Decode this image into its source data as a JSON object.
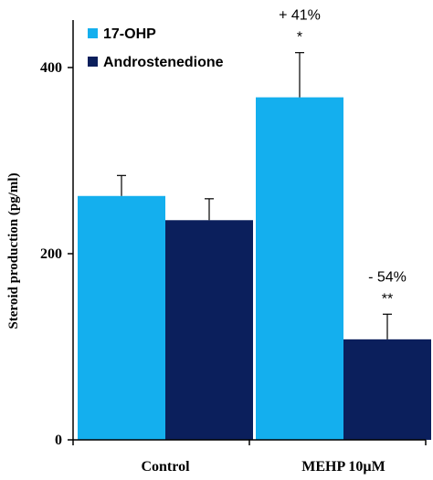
{
  "chart_data": {
    "type": "bar",
    "ylabel": "Steroid production (pg/ml)",
    "xlabel": "",
    "title": "",
    "ylim": [
      0,
      450
    ],
    "yticks": [
      0,
      200,
      400
    ],
    "tick_labels": [
      "0",
      "200",
      "400"
    ],
    "categories": [
      "Control",
      "MEHP 10µM"
    ],
    "grid": false,
    "legend_position": "top-left",
    "series": [
      {
        "name": "17-OHP",
        "color": "#14AFEE",
        "values": [
          262,
          368
        ],
        "errors": [
          22,
          48
        ],
        "annotations": [
          "",
          "+ 41%"
        ],
        "stars": [
          "",
          "*"
        ]
      },
      {
        "name": "Androstenedione",
        "color": "#0B1F5C",
        "values": [
          236,
          108
        ],
        "errors": [
          23,
          27
        ],
        "annotations": [
          "",
          "- 54%"
        ],
        "stars": [
          "",
          "**"
        ]
      }
    ]
  }
}
